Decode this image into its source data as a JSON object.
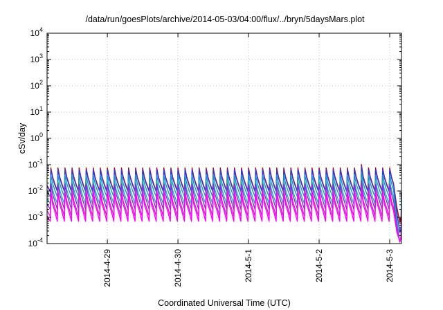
{
  "chart_data": {
    "type": "line",
    "title": "/data/run/goesPlots/archive/2014-05-03/04:00/flux/../bryn/5daysMars.plot",
    "xlabel": "Coordinated Universal Time (UTC)",
    "ylabel": "cSv/day",
    "yscale": "log",
    "ylim": [
      0.0001,
      10000
    ],
    "xlim": [
      "2014-04-28 03:30",
      "2014-05-03 04:00"
    ],
    "grid": true,
    "legend": "none",
    "y_ticks": [
      {
        "base": "10",
        "exp": "-4"
      },
      {
        "base": "10",
        "exp": "-3"
      },
      {
        "base": "10",
        "exp": "-2"
      },
      {
        "base": "10",
        "exp": "-1"
      },
      {
        "base": "10",
        "exp": "0"
      },
      {
        "base": "10",
        "exp": "1"
      },
      {
        "base": "10",
        "exp": "2"
      },
      {
        "base": "10",
        "exp": "3"
      },
      {
        "base": "10",
        "exp": "4"
      }
    ],
    "x_ticks": [
      {
        "label": "2014-4-29",
        "t": "2014-04-29 00:00"
      },
      {
        "label": "2014-4-30",
        "t": "2014-04-30 00:00"
      },
      {
        "label": "2014-5-1",
        "t": "2014-05-01 00:00"
      },
      {
        "label": "2014-5-2",
        "t": "2014-05-02 00:00"
      },
      {
        "label": "2014-5-3",
        "t": "2014-05-03 00:00"
      }
    ],
    "pattern": {
      "cycle_hours": 2.4,
      "cycles": 49,
      "last_cycle_peak": "2014-05-03 00:00"
    },
    "series": [
      {
        "color": "#cc0000",
        "peak": 0.075,
        "trough": 0.01
      },
      {
        "color": "#2b3bd6",
        "peak": 0.065,
        "trough": 0.0095
      },
      {
        "color": "#1f8fd0",
        "peak": 0.04,
        "trough": 0.006
      },
      {
        "color": "#19b8b0",
        "peak": 0.024,
        "trough": 0.0032
      },
      {
        "color": "#8a2be2",
        "peak": 0.018,
        "trough": 0.002
      },
      {
        "color": "#d020c8",
        "peak": 0.01,
        "trough": 0.0011
      },
      {
        "color": "#ff00ff",
        "peak": 0.0085,
        "trough": 0.0007
      }
    ]
  }
}
